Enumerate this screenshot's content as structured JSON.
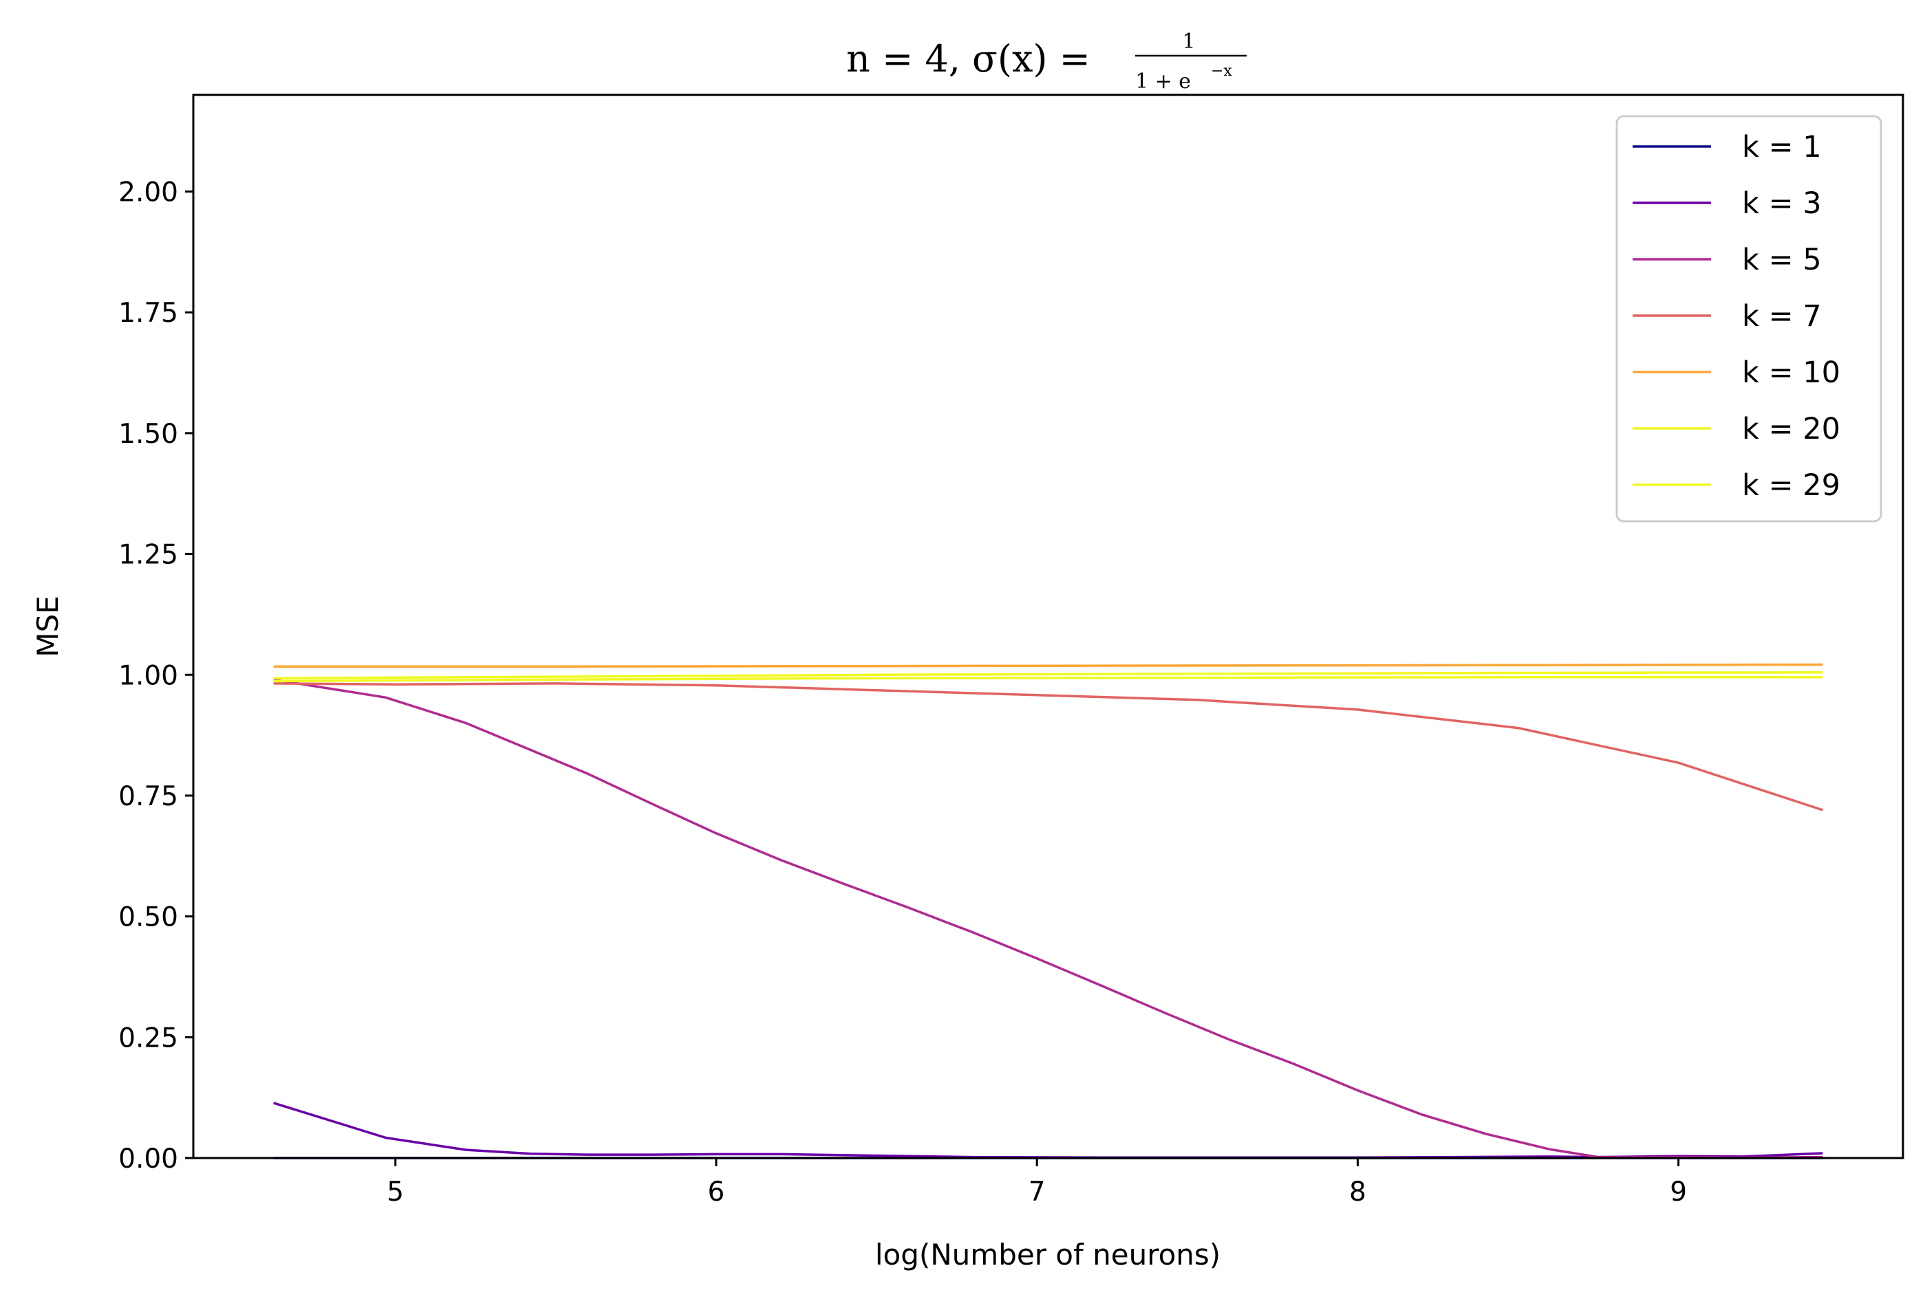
{
  "chart_data": {
    "type": "line",
    "title": {
      "main": "n = 4, σ(x) = ",
      "frac_num": "1",
      "frac_den": "1 + e",
      "frac_exp": "−x"
    },
    "xlabel": "log(Number of neurons)",
    "ylabel": "MSE",
    "xlim": [
      4.37,
      9.7
    ],
    "ylim": [
      0,
      2.2
    ],
    "xticks": [
      5,
      6,
      7,
      8,
      9
    ],
    "xtick_labels": [
      "5",
      "6",
      "7",
      "8",
      "9"
    ],
    "yticks": [
      0,
      0.25,
      0.5,
      0.75,
      1.0,
      1.25,
      1.5,
      1.75,
      2.0
    ],
    "ytick_labels": [
      "0.00",
      "0.25",
      "0.50",
      "0.75",
      "1.00",
      "1.25",
      "1.50",
      "1.75",
      "2.00"
    ],
    "grid": false,
    "legend_position": "top-right",
    "series": [
      {
        "name": "k = 1",
        "color": "#0d0887",
        "x": [
          4.62,
          5.5,
          6.5,
          7.5,
          8.5,
          9.45
        ],
        "y": [
          0.0,
          0.0,
          0.0,
          0.0,
          0.0,
          0.0
        ]
      },
      {
        "name": "k = 3",
        "color": "#6a00a8",
        "x": [
          4.62,
          4.97,
          5.22,
          5.42,
          5.6,
          5.8,
          6.0,
          6.2,
          6.5,
          6.8,
          7.2,
          7.6,
          8.0,
          8.3,
          8.6,
          8.75,
          9.0,
          9.2,
          9.45
        ],
        "y": [
          0.114,
          0.042,
          0.017,
          0.009,
          0.007,
          0.007,
          0.008,
          0.008,
          0.005,
          0.002,
          0.001,
          0.001,
          0.001,
          0.002,
          0.003,
          0.002,
          0.004,
          0.003,
          0.01
        ]
      },
      {
        "name": "k = 5",
        "color": "#b12a90",
        "x": [
          4.62,
          4.97,
          5.22,
          5.42,
          5.6,
          5.8,
          6.0,
          6.2,
          6.4,
          6.6,
          6.8,
          7.0,
          7.2,
          7.4,
          7.6,
          7.8,
          8.0,
          8.2,
          8.4,
          8.6,
          8.75,
          9.0,
          9.2,
          9.45
        ],
        "y": [
          0.99,
          0.953,
          0.9,
          0.845,
          0.795,
          0.733,
          0.672,
          0.617,
          0.567,
          0.518,
          0.467,
          0.413,
          0.357,
          0.3,
          0.245,
          0.195,
          0.14,
          0.09,
          0.05,
          0.018,
          0.002,
          0.002,
          0.001,
          0.002
        ]
      },
      {
        "name": "k = 7",
        "color": "#e16462",
        "x": [
          4.62,
          5.0,
          5.5,
          6.0,
          6.5,
          7.0,
          7.5,
          8.0,
          8.5,
          9.0,
          9.45
        ],
        "y": [
          0.982,
          0.98,
          0.982,
          0.978,
          0.968,
          0.958,
          0.948,
          0.928,
          0.89,
          0.818,
          0.72
        ]
      },
      {
        "name": "k = 10",
        "color": "#fca636",
        "x": [
          4.62,
          5.5,
          6.5,
          7.5,
          8.5,
          9.45
        ],
        "y": [
          1.017,
          1.017,
          1.018,
          1.019,
          1.02,
          1.021
        ]
      },
      {
        "name": "k = 20",
        "color": "#f0f921",
        "x": [
          4.62,
          5.5,
          6.5,
          7.5,
          8.5,
          9.45
        ],
        "y": [
          0.993,
          0.996,
          1.0,
          1.002,
          1.004,
          1.005
        ]
      },
      {
        "name": "k = 29",
        "color": "#f0f921",
        "x": [
          4.62,
          5.5,
          6.5,
          7.5,
          8.5,
          9.45
        ],
        "y": [
          0.987,
          0.99,
          0.993,
          0.994,
          0.995,
          0.995
        ]
      }
    ]
  }
}
